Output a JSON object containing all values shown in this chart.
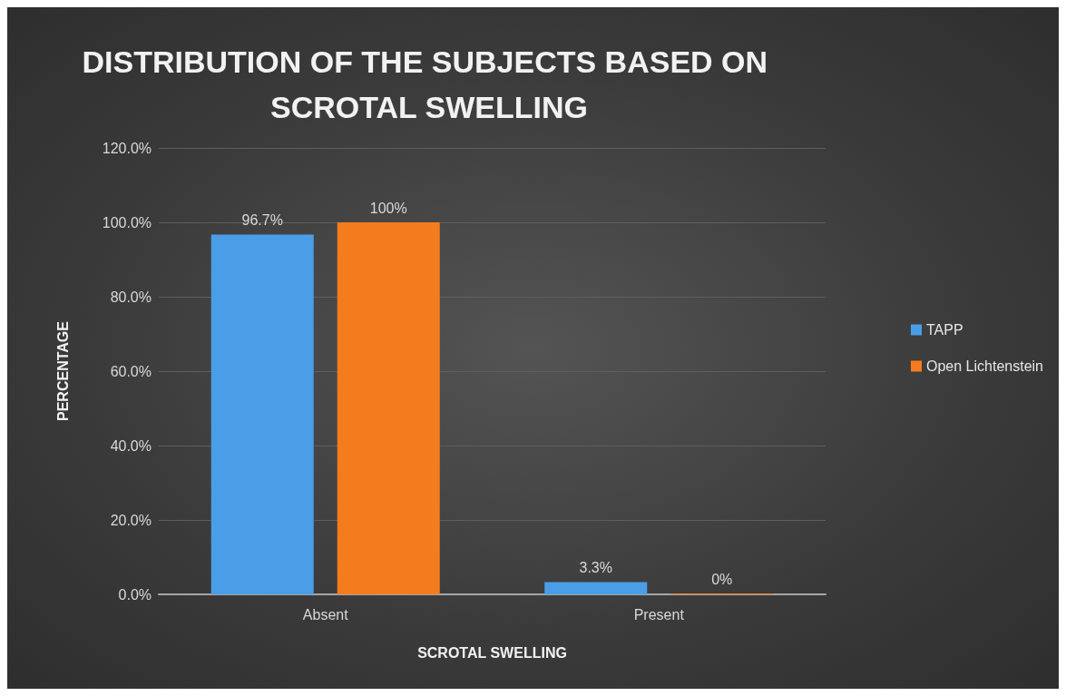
{
  "chart_data": {
    "type": "bar",
    "title": "DISTRIBUTION OF THE SUBJECTS BASED ON SCROTAL SWELLING",
    "xlabel": "SCROTAL SWELLING",
    "ylabel": "PERCENTAGE",
    "categories": [
      "Absent",
      "Present"
    ],
    "series": [
      {
        "name": "TAPP",
        "color": "#4a9ee8",
        "values": [
          96.7,
          3.3
        ],
        "value_labels": [
          "96.7%",
          "3.3%"
        ]
      },
      {
        "name": "Open Lichtenstein",
        "color": "#f47c1e",
        "values": [
          100,
          0
        ],
        "value_labels": [
          "100%",
          "0%"
        ]
      }
    ],
    "ylim": [
      0,
      120
    ],
    "yticks": [
      {
        "value": 0,
        "label": "0.0%"
      },
      {
        "value": 20,
        "label": "20.0%"
      },
      {
        "value": 40,
        "label": "40.0%"
      },
      {
        "value": 60,
        "label": "60.0%"
      },
      {
        "value": 80,
        "label": "80.0%"
      },
      {
        "value": 100,
        "label": "100.0%"
      },
      {
        "value": 120,
        "label": "120.0%"
      }
    ],
    "grid": "y",
    "legend": "right"
  }
}
